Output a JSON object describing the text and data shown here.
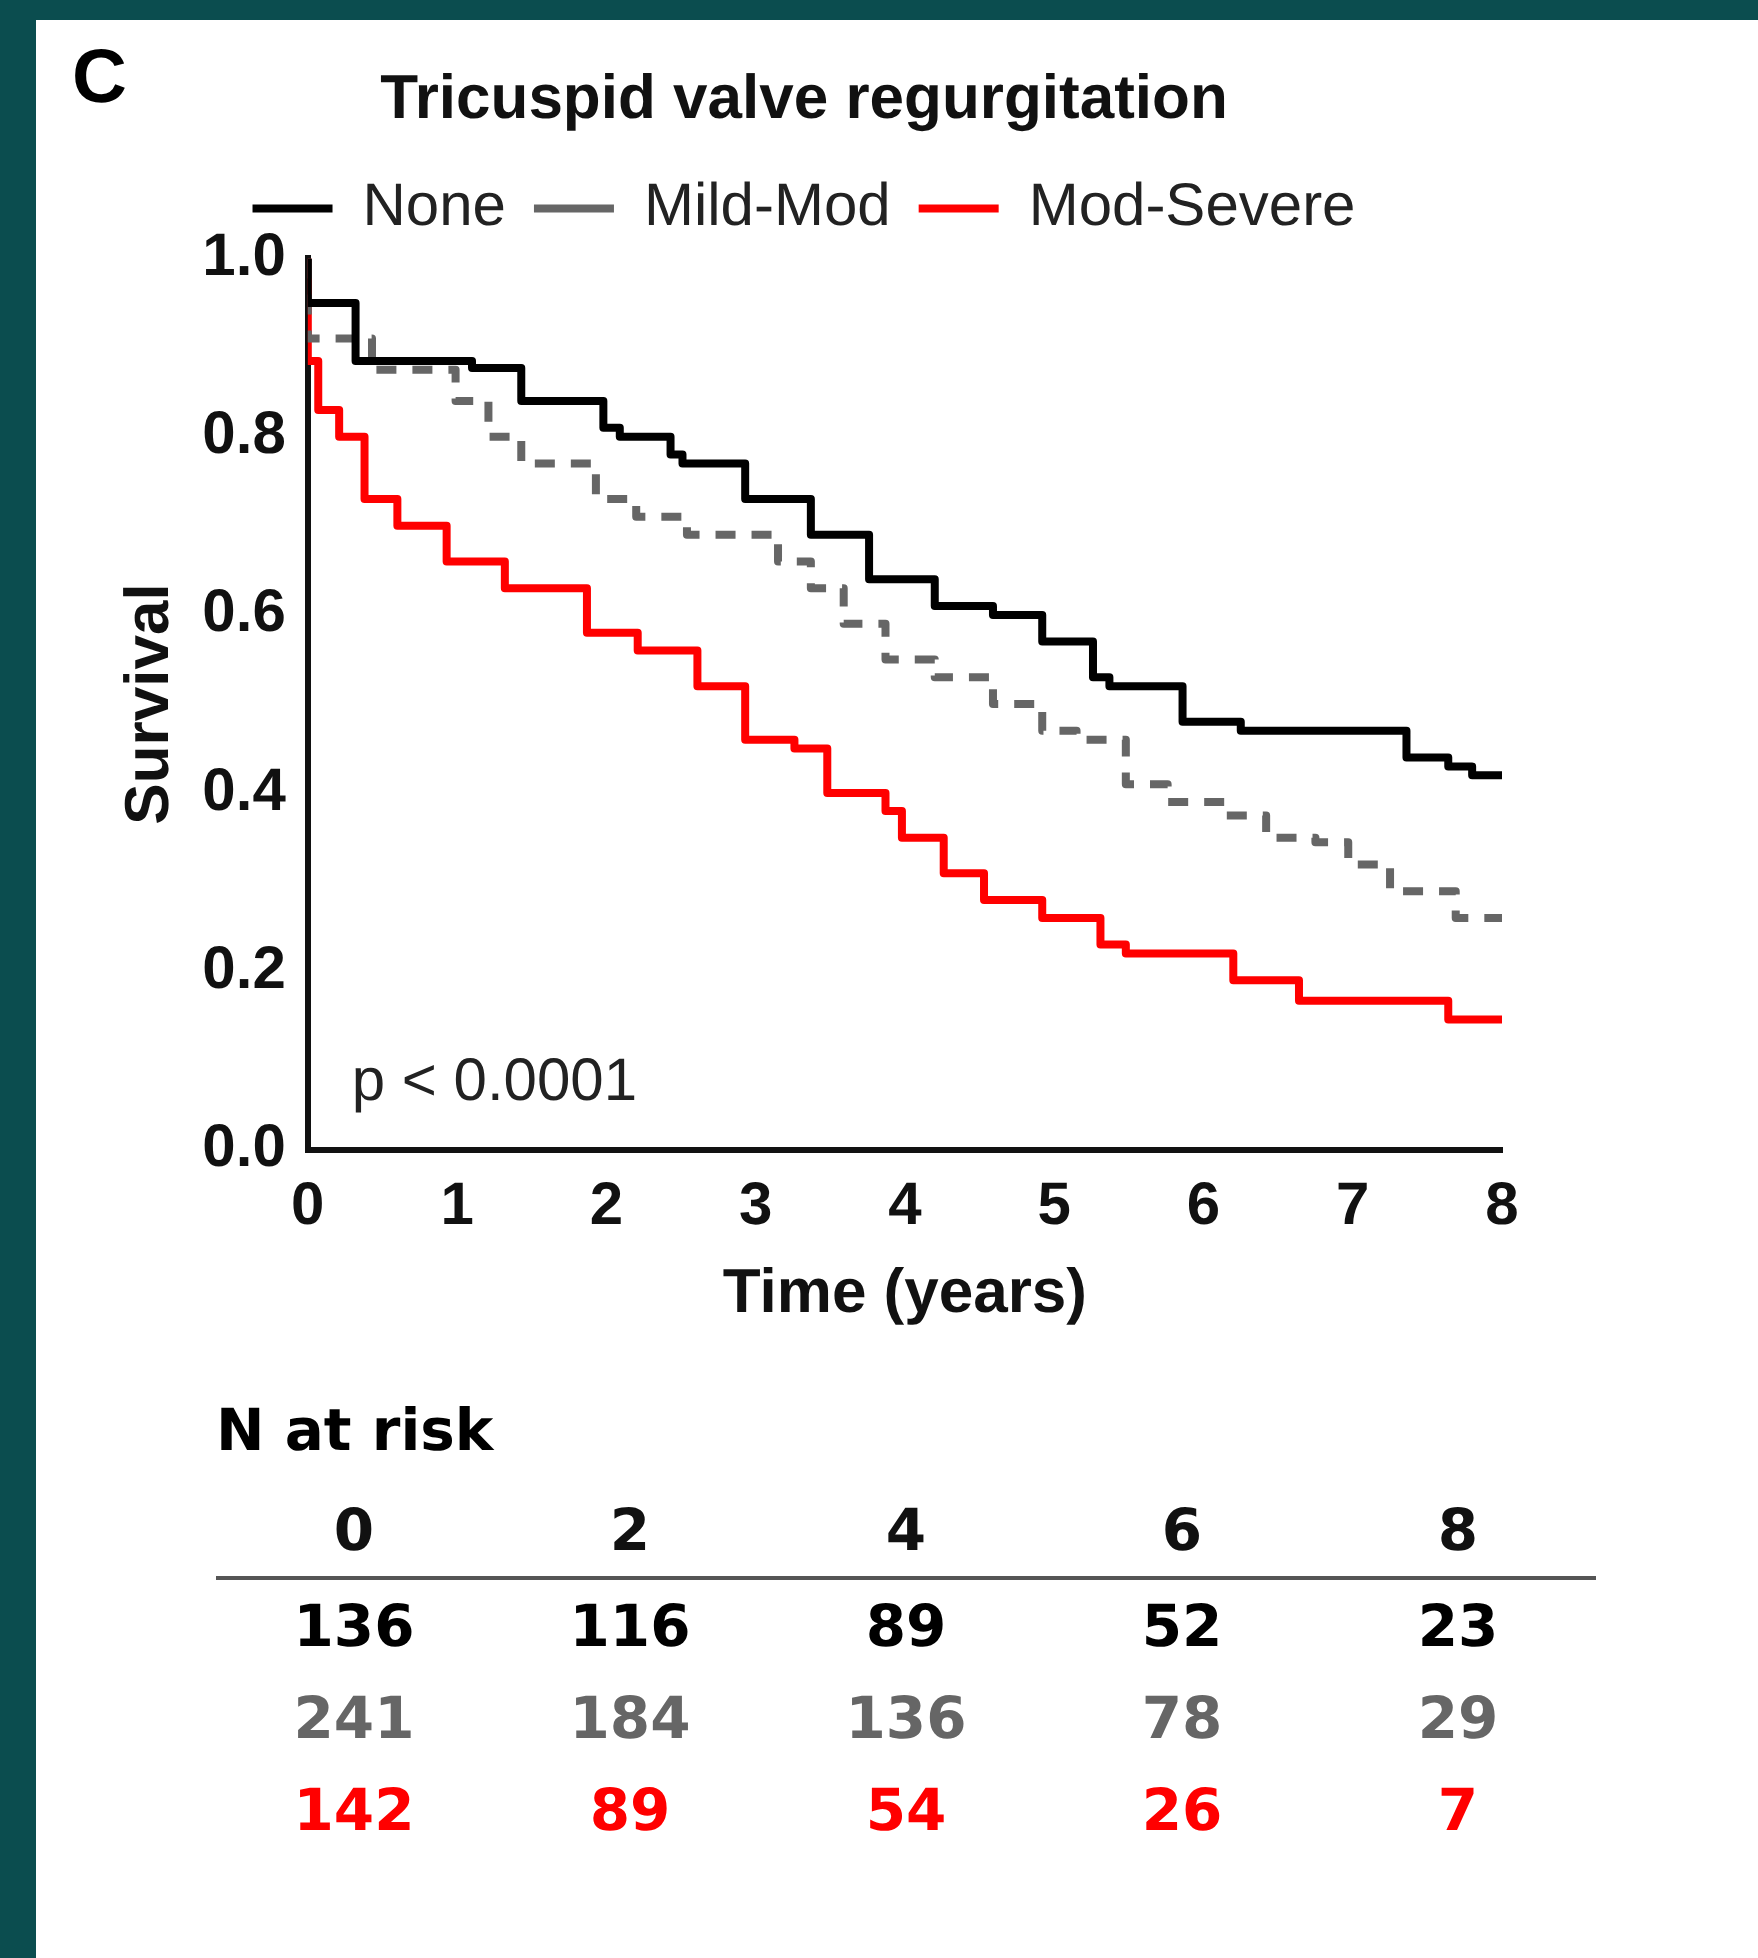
{
  "chart_data": {
    "type": "step",
    "title": "Tricuspid valve regurgitation",
    "xlabel": "Time (years)",
    "ylabel": "Survival",
    "xlim": [
      0,
      8
    ],
    "xticks": [
      0,
      1,
      2,
      3,
      4,
      5,
      6,
      7,
      8
    ],
    "ylim": [
      0,
      1
    ],
    "yticks": [
      {
        "value": 0,
        "label": "0.0"
      },
      0.2,
      0.4,
      0.6,
      0.8,
      {
        "value": 1,
        "label": "1.0"
      }
    ],
    "grid": false,
    "legend": "top",
    "marker": "none",
    "series": [
      {
        "name": "None",
        "color": "#000000",
        "line_style": "solid",
        "x": [
          0,
          0.32,
          1.1,
          1.43,
          1.98,
          2.09,
          2.43,
          2.51,
          2.93,
          3.37,
          3.54,
          3.76,
          4.2,
          4.59,
          4.92,
          5.26,
          5.37,
          5.59,
          5.86,
          6.25,
          6.36,
          7.36,
          7.64,
          7.8,
          7.92,
          8
        ],
        "values": [
          1.0,
          0.95,
          0.885,
          0.877,
          0.84,
          0.81,
          0.8,
          0.78,
          0.77,
          0.73,
          0.69,
          0.69,
          0.64,
          0.61,
          0.6,
          0.57,
          0.53,
          0.52,
          0.52,
          0.48,
          0.47,
          0.47,
          0.44,
          0.43,
          0.42,
          0.42
        ]
      },
      {
        "name": "Mild-Mod",
        "color": "#666666",
        "line_style": "dashed",
        "x": [
          0,
          0.43,
          0.99,
          1.21,
          1.43,
          1.93,
          2.2,
          2.54,
          2.87,
          3.15,
          3.37,
          3.59,
          3.87,
          4.2,
          4.59,
          4.92,
          5.15,
          5.48,
          5.76,
          6.15,
          6.42,
          6.75,
          6.97,
          7.25,
          7.69,
          8
        ],
        "values": [
          1.0,
          0.91,
          0.875,
          0.84,
          0.8,
          0.77,
          0.73,
          0.71,
          0.69,
          0.69,
          0.66,
          0.63,
          0.59,
          0.55,
          0.53,
          0.5,
          0.47,
          0.46,
          0.41,
          0.39,
          0.375,
          0.35,
          0.345,
          0.32,
          0.29,
          0.26
        ]
      },
      {
        "name": "Mod-Severe",
        "color": "#ff0000",
        "line_style": "solid",
        "x": [
          0,
          0.07,
          0.21,
          0.38,
          0.6,
          0.93,
          1.32,
          1.87,
          2.21,
          2.61,
          2.93,
          3.26,
          3.48,
          3.87,
          3.98,
          4.26,
          4.53,
          4.92,
          5.31,
          5.48,
          5.76,
          6.2,
          6.64,
          6.86,
          7.64,
          7.75,
          8
        ],
        "values": [
          1.0,
          0.885,
          0.83,
          0.8,
          0.73,
          0.7,
          0.66,
          0.63,
          0.58,
          0.56,
          0.52,
          0.46,
          0.45,
          0.4,
          0.38,
          0.35,
          0.31,
          0.28,
          0.26,
          0.23,
          0.22,
          0.22,
          0.19,
          0.167,
          0.167,
          0.146,
          0.146
        ]
      }
    ],
    "annotations": [
      "C",
      "p < 0.0001",
      "N at risk",
      "0 2 4 6 8",
      "136 116 89 52 23",
      "241 184 136 78 29",
      "142 89 54 26 7"
    ]
  }
}
